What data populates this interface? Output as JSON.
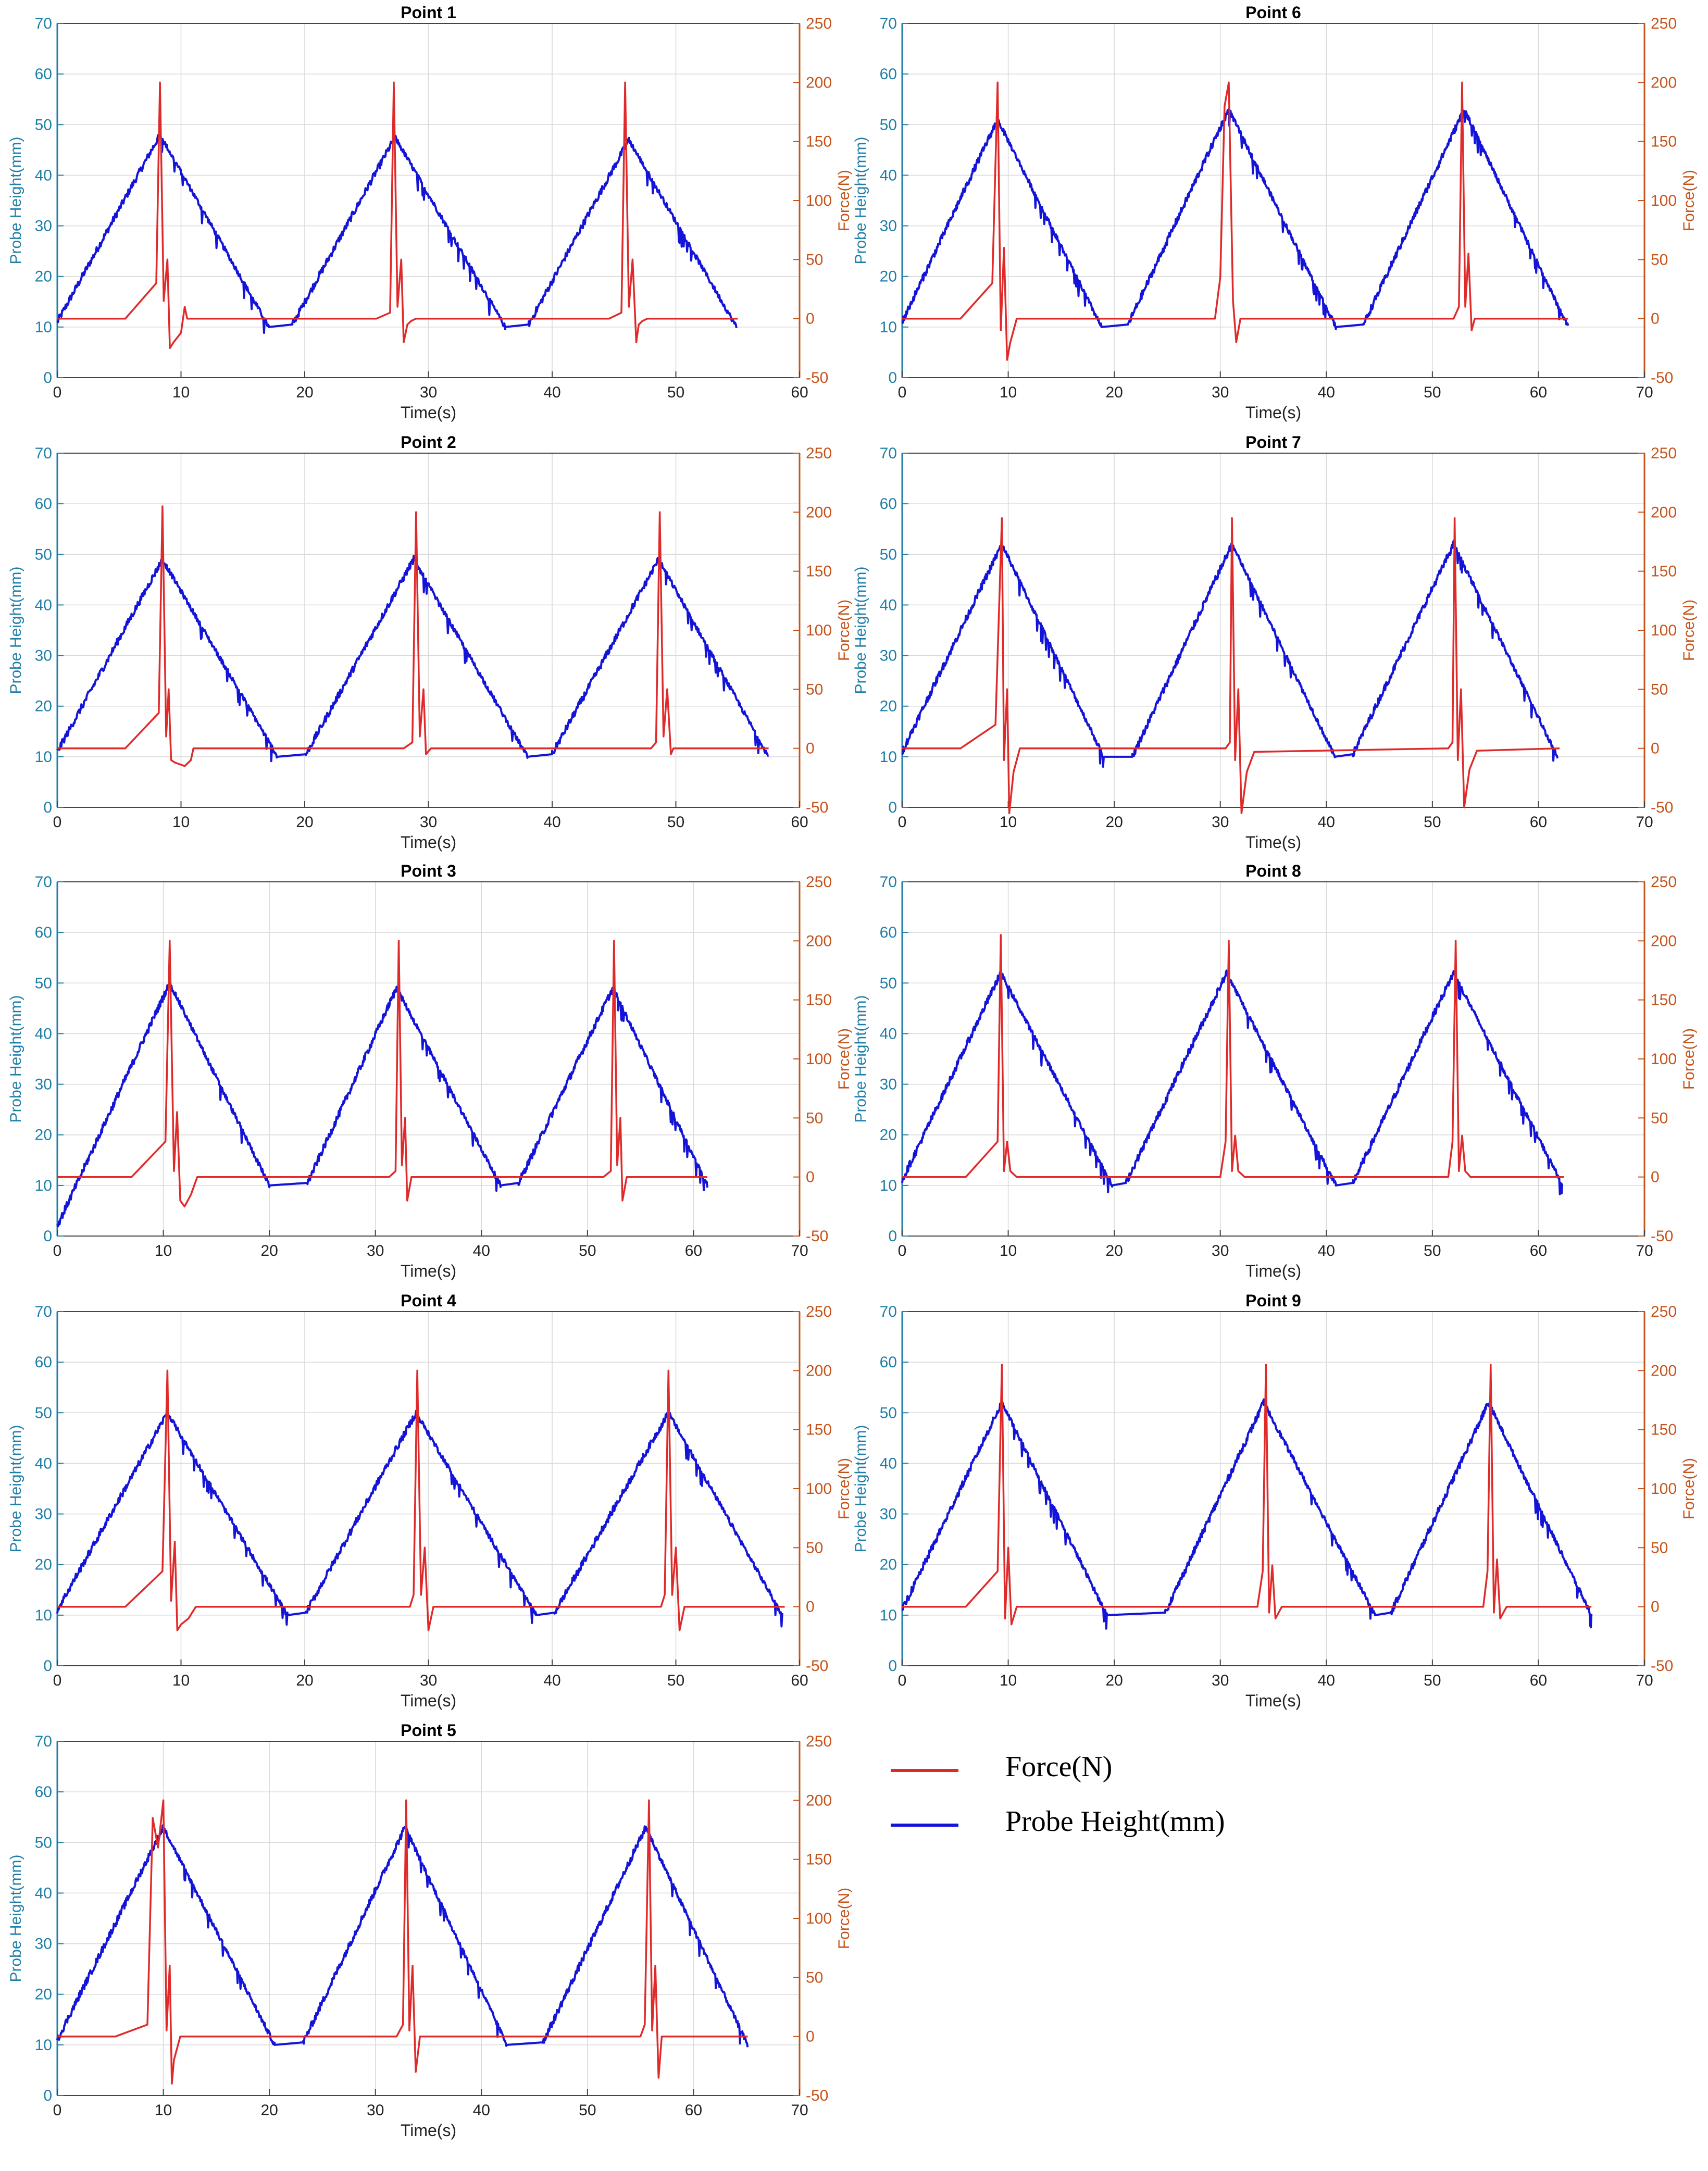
{
  "figure": {
    "legend": [
      {
        "label": "Force(N)",
        "color": "#e02a2a"
      },
      {
        "label": "Probe Height(mm)",
        "color": "#1414d8"
      }
    ]
  },
  "axes_labels": {
    "xlabel": "Time(s)",
    "ylabel_left": "Probe Height(mm)",
    "ylabel_right": "Force(N)"
  },
  "colors": {
    "height": "#1414d8",
    "force": "#e02a2a",
    "left_axis": "#1f7fa8",
    "right_axis": "#c5541b",
    "grid": "#d9d9d9"
  },
  "chart_data": [
    {
      "type": "line",
      "title": "Point 1",
      "xlim": [
        0,
        60
      ],
      "xticks": [
        0,
        10,
        20,
        30,
        40,
        50,
        60
      ],
      "ylim_left": [
        0,
        70
      ],
      "yticks_left": [
        0,
        10,
        20,
        30,
        40,
        50,
        60,
        70
      ],
      "ylim_right": [
        -50,
        250
      ],
      "yticks_right": [
        -50,
        0,
        50,
        100,
        150,
        200,
        250
      ],
      "series": [
        {
          "name": "Probe Height(mm)",
          "axis": "left",
          "x": [
            0,
            8.3,
            17.1,
            19.0,
            27.3,
            36.2,
            38.1,
            46.2,
            54.9
          ],
          "y": [
            11,
            48,
            10,
            10.5,
            47.5,
            10,
            10.5,
            47,
            10
          ]
        },
        {
          "name": "Force(N)",
          "axis": "right",
          "x": [
            0,
            5.5,
            8,
            8.3,
            8.6,
            8.9,
            9.1,
            9.4,
            9.7,
            10,
            10.3,
            10.5,
            10.6,
            10.7,
            25.8,
            26.9,
            27.2,
            27.5,
            27.8,
            28,
            28.3,
            28.6,
            29,
            44.6,
            45.6,
            45.9,
            46.2,
            46.5,
            46.8,
            47,
            47.3,
            47.7,
            55
          ],
          "y": [
            0,
            0,
            30,
            200,
            15,
            50,
            -25,
            -20,
            -16,
            -12,
            10,
            0,
            0,
            0,
            0,
            5,
            200,
            10,
            50,
            -20,
            -5,
            -2,
            0,
            0,
            5,
            200,
            10,
            50,
            -20,
            -5,
            -2,
            0,
            0
          ]
        }
      ]
    },
    {
      "type": "line",
      "title": "Point 2",
      "xlim": [
        0,
        60
      ],
      "xticks": [
        0,
        10,
        20,
        30,
        40,
        50,
        60
      ],
      "ylim_left": [
        0,
        70
      ],
      "yticks_left": [
        0,
        10,
        20,
        30,
        40,
        50,
        60,
        70
      ],
      "ylim_right": [
        -50,
        250
      ],
      "yticks_right": [
        -50,
        0,
        50,
        100,
        150,
        200,
        250
      ],
      "series": [
        {
          "name": "Probe Height(mm)",
          "axis": "left",
          "x": [
            0,
            8.5,
            17.8,
            20.1,
            28.8,
            38.0,
            40.0,
            48.6,
            57.5
          ],
          "y": [
            11,
            49,
            10,
            10.5,
            49,
            10,
            10.5,
            49,
            10
          ]
        },
        {
          "name": "Force(N)",
          "axis": "right",
          "x": [
            0,
            5.5,
            8.2,
            8.5,
            8.8,
            9.0,
            9.2,
            9.5,
            10.3,
            10.8,
            11.0,
            28.0,
            28.7,
            29.0,
            29.3,
            29.6,
            29.8,
            30.2,
            48.0,
            48.4,
            48.7,
            49.0,
            49.3,
            49.6,
            49.8,
            50.2,
            57.5
          ],
          "y": [
            0,
            0,
            30,
            205,
            10,
            50,
            -10,
            -12,
            -15,
            -10,
            0,
            0,
            5,
            200,
            10,
            50,
            -5,
            0,
            0,
            5,
            200,
            10,
            50,
            -5,
            0,
            0,
            0
          ]
        }
      ]
    },
    {
      "type": "line",
      "title": "Point 3",
      "xlim": [
        0,
        70
      ],
      "xticks": [
        0,
        10,
        20,
        30,
        40,
        50,
        60,
        70
      ],
      "ylim_left": [
        0,
        70
      ],
      "yticks_left": [
        0,
        10,
        20,
        30,
        40,
        50,
        60,
        70
      ],
      "ylim_right": [
        -50,
        250
      ],
      "yticks_right": [
        -50,
        0,
        50,
        100,
        150,
        200,
        250
      ],
      "series": [
        {
          "name": "Probe Height(mm)",
          "axis": "left",
          "x": [
            0,
            10.6,
            20.0,
            23.6,
            32.0,
            41.8,
            43.5,
            52.4,
            61.3
          ],
          "y": [
            2,
            50,
            10,
            10.5,
            49,
            10,
            10.5,
            49,
            10
          ]
        },
        {
          "name": "Force(N)",
          "axis": "right",
          "x": [
            0,
            7,
            10.2,
            10.6,
            11.0,
            11.3,
            11.6,
            12.0,
            12.6,
            13.2,
            31.3,
            31.9,
            32.2,
            32.5,
            32.8,
            33.0,
            33.4,
            51.5,
            52.2,
            52.5,
            52.8,
            53.1,
            53.3,
            53.7,
            61.3
          ],
          "y": [
            0,
            0,
            30,
            200,
            5,
            55,
            -20,
            -25,
            -15,
            0,
            0,
            5,
            200,
            10,
            50,
            -20,
            0,
            0,
            5,
            200,
            10,
            50,
            -20,
            0,
            0
          ]
        }
      ]
    },
    {
      "type": "line",
      "title": "Point 4",
      "xlim": [
        0,
        60
      ],
      "xticks": [
        0,
        10,
        20,
        30,
        40,
        50,
        60
      ],
      "ylim_left": [
        0,
        70
      ],
      "yticks_left": [
        0,
        10,
        20,
        30,
        40,
        50,
        60,
        70
      ],
      "ylim_right": [
        -50,
        250
      ],
      "yticks_right": [
        -50,
        0,
        50,
        100,
        150,
        200,
        250
      ],
      "series": [
        {
          "name": "Probe Height(mm)",
          "axis": "left",
          "x": [
            0,
            8.9,
            18.6,
            20.1,
            29.0,
            38.7,
            40.2,
            49.4,
            58.6
          ],
          "y": [
            11,
            50,
            10,
            10.5,
            50,
            10,
            10.5,
            50,
            10
          ]
        },
        {
          "name": "Force(N)",
          "axis": "right",
          "x": [
            0,
            5.5,
            8.5,
            8.9,
            9.2,
            9.5,
            9.7,
            10.0,
            10.6,
            11.2,
            28.5,
            28.8,
            29.1,
            29.4,
            29.7,
            30.0,
            30.4,
            48.8,
            49.1,
            49.4,
            49.7,
            50.0,
            50.3,
            50.7,
            58.8
          ],
          "y": [
            0,
            0,
            30,
            200,
            5,
            55,
            -20,
            -15,
            -10,
            0,
            0,
            10,
            200,
            10,
            50,
            -20,
            0,
            0,
            10,
            200,
            10,
            50,
            -20,
            0,
            0
          ]
        }
      ]
    },
    {
      "type": "line",
      "title": "Point 5",
      "xlim": [
        0,
        70
      ],
      "xticks": [
        0,
        10,
        20,
        30,
        40,
        50,
        60,
        70
      ],
      "ylim_left": [
        0,
        70
      ],
      "yticks_left": [
        0,
        10,
        20,
        30,
        40,
        50,
        60,
        70
      ],
      "ylim_right": [
        -50,
        250
      ],
      "yticks_right": [
        -50,
        0,
        50,
        100,
        150,
        200,
        250
      ],
      "series": [
        {
          "name": "Probe Height(mm)",
          "axis": "left",
          "x": [
            0,
            10.0,
            20.5,
            23.2,
            32.8,
            42.4,
            45.8,
            55.5,
            65.1
          ],
          "y": [
            11,
            53,
            10,
            10.5,
            53,
            10,
            10.5,
            53,
            10
          ]
        },
        {
          "name": "Force(N)",
          "axis": "right",
          "x": [
            0,
            5.5,
            8.5,
            9.0,
            9.5,
            10.0,
            10.3,
            10.6,
            10.8,
            11.0,
            11.6,
            32.0,
            32.6,
            32.9,
            33.2,
            33.5,
            33.8,
            34.2,
            55.0,
            55.4,
            55.8,
            56.1,
            56.4,
            56.7,
            57.0,
            65.1
          ],
          "y": [
            0,
            0,
            10,
            185,
            160,
            200,
            5,
            60,
            -40,
            -20,
            0,
            0,
            10,
            200,
            5,
            60,
            -30,
            0,
            0,
            10,
            200,
            5,
            60,
            -35,
            0,
            0
          ]
        }
      ]
    },
    {
      "type": "line",
      "title": "Point 6",
      "xlim": [
        0,
        70
      ],
      "xticks": [
        0,
        10,
        20,
        30,
        40,
        50,
        60,
        70
      ],
      "ylim_left": [
        0,
        70
      ],
      "yticks_left": [
        0,
        10,
        20,
        30,
        40,
        50,
        60,
        70
      ],
      "ylim_right": [
        -50,
        250
      ],
      "yticks_right": [
        -50,
        0,
        50,
        100,
        150,
        200,
        250
      ],
      "series": [
        {
          "name": "Probe Height(mm)",
          "axis": "left",
          "x": [
            0,
            9.0,
            18.8,
            21.3,
            30.8,
            40.9,
            43.5,
            53.0,
            62.8
          ],
          "y": [
            11,
            51,
            10,
            10.5,
            53,
            10,
            10.5,
            53,
            10
          ]
        },
        {
          "name": "Force(N)",
          "axis": "right",
          "x": [
            0,
            5.5,
            8.5,
            9.0,
            9.3,
            9.6,
            9.9,
            10.2,
            10.5,
            10.8,
            29.5,
            30.0,
            30.4,
            30.8,
            31.2,
            31.5,
            31.9,
            52.0,
            52.5,
            52.8,
            53.1,
            53.4,
            53.7,
            54.0,
            62.8
          ],
          "y": [
            0,
            0,
            30,
            200,
            -10,
            60,
            -35,
            -20,
            -10,
            0,
            0,
            35,
            180,
            200,
            15,
            -20,
            0,
            0,
            10,
            200,
            10,
            55,
            -10,
            0,
            0
          ]
        }
      ]
    },
    {
      "type": "line",
      "title": "Point 7",
      "xlim": [
        0,
        70
      ],
      "xticks": [
        0,
        10,
        20,
        30,
        40,
        50,
        60,
        70
      ],
      "ylim_left": [
        0,
        70
      ],
      "yticks_left": [
        0,
        10,
        20,
        30,
        40,
        50,
        60,
        70
      ],
      "ylim_right": [
        -50,
        250
      ],
      "yticks_right": [
        -50,
        0,
        50,
        100,
        150,
        200,
        250
      ],
      "series": [
        {
          "name": "Probe Height(mm)",
          "axis": "left",
          "x": [
            0,
            9.4,
            19.0,
            21.7,
            31.1,
            40.8,
            42.5,
            52.0,
            61.8
          ],
          "y": [
            11,
            52,
            10,
            10,
            52,
            10,
            10.5,
            52,
            10
          ]
        },
        {
          "name": "Force(N)",
          "axis": "right",
          "x": [
            0,
            5.5,
            8.8,
            9.4,
            9.6,
            9.9,
            10.1,
            10.5,
            11.1,
            30.5,
            30.9,
            31.1,
            31.4,
            31.7,
            32.0,
            32.5,
            33.2,
            51.5,
            51.9,
            52.1,
            52.4,
            52.7,
            53.0,
            53.5,
            54.2,
            62
          ],
          "y": [
            0,
            0,
            20,
            195,
            -10,
            50,
            -55,
            -20,
            0,
            0,
            5,
            195,
            -10,
            50,
            -55,
            -20,
            -3,
            0,
            5,
            195,
            -10,
            50,
            -50,
            -18,
            -2,
            0
          ]
        }
      ]
    },
    {
      "type": "line",
      "title": "Point 8",
      "xlim": [
        0,
        70
      ],
      "xticks": [
        0,
        10,
        20,
        30,
        40,
        50,
        60,
        70
      ],
      "ylim_left": [
        0,
        70
      ],
      "yticks_left": [
        0,
        10,
        20,
        30,
        40,
        50,
        60,
        70
      ],
      "ylim_right": [
        -50,
        250
      ],
      "yticks_right": [
        -50,
        0,
        50,
        100,
        150,
        200,
        250
      ],
      "series": [
        {
          "name": "Probe Height(mm)",
          "axis": "left",
          "x": [
            0,
            9.3,
            19.8,
            21.1,
            30.6,
            40.9,
            42.5,
            52.0,
            62.3
          ],
          "y": [
            11,
            52,
            10,
            10.5,
            52,
            10,
            10.5,
            52,
            10
          ]
        },
        {
          "name": "Force(N)",
          "axis": "right",
          "x": [
            0,
            6,
            9.0,
            9.3,
            9.6,
            9.9,
            10.2,
            10.8,
            30.0,
            30.5,
            30.8,
            31.1,
            31.4,
            31.7,
            32.3,
            51.5,
            51.9,
            52.2,
            52.5,
            52.8,
            53.1,
            53.6,
            62.4
          ],
          "y": [
            0,
            0,
            30,
            205,
            5,
            30,
            5,
            0,
            0,
            30,
            200,
            5,
            35,
            5,
            0,
            0,
            30,
            200,
            5,
            35,
            5,
            0,
            0
          ]
        }
      ]
    },
    {
      "type": "line",
      "title": "Point 9",
      "xlim": [
        0,
        70
      ],
      "xticks": [
        0,
        10,
        20,
        30,
        40,
        50,
        60,
        70
      ],
      "ylim_left": [
        0,
        70
      ],
      "yticks_left": [
        0,
        10,
        20,
        30,
        40,
        50,
        60,
        70
      ],
      "ylim_right": [
        -50,
        250
      ],
      "yticks_right": [
        -50,
        0,
        50,
        100,
        150,
        200,
        250
      ],
      "series": [
        {
          "name": "Probe Height(mm)",
          "axis": "left",
          "x": [
            0,
            9.4,
            19.3,
            24.8,
            34.1,
            44.6,
            46.1,
            55.3,
            65.0
          ],
          "y": [
            11,
            52,
            10,
            10.5,
            52,
            10,
            10.5,
            52,
            10
          ]
        },
        {
          "name": "Force(N)",
          "axis": "right",
          "x": [
            0,
            6,
            9.0,
            9.4,
            9.7,
            10.0,
            10.3,
            10.8,
            33.5,
            34.0,
            34.3,
            34.6,
            34.9,
            35.2,
            35.8,
            54.8,
            55.2,
            55.5,
            55.8,
            56.1,
            56.4,
            57.0,
            65
          ],
          "y": [
            0,
            0,
            30,
            205,
            -10,
            50,
            -15,
            0,
            0,
            30,
            205,
            -5,
            35,
            -10,
            0,
            0,
            30,
            205,
            -5,
            40,
            -10,
            0,
            0
          ]
        }
      ]
    }
  ]
}
